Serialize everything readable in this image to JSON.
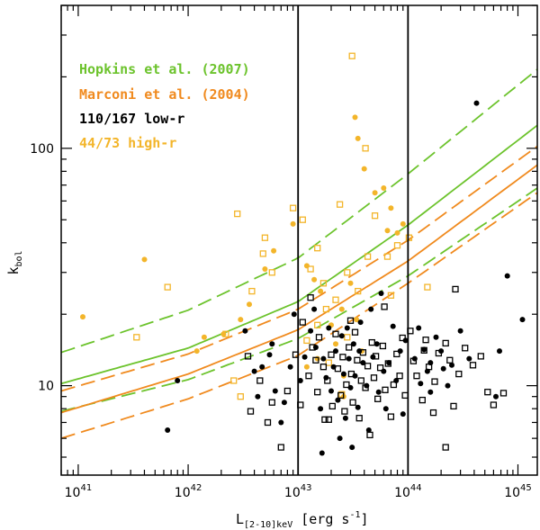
{
  "chart_data": {
    "type": "scatter",
    "title": "",
    "xlabel": "L[2-10]keV [erg s⁻¹]",
    "xlabel_main": "L",
    "xlabel_sub": "[2-10]keV",
    "xlabel_unit": " [erg s",
    "xlabel_sup": "-1",
    "xlabel_close": "]",
    "ylabel": "kbol",
    "ylabel_main": "k",
    "ylabel_sub": "bol",
    "xscale": "log",
    "yscale": "log",
    "xlim": [
      7e+40,
      1.5e+45
    ],
    "ylim": [
      4.2,
      400
    ],
    "x_ticks": [
      {
        "base": "10",
        "exp": "41",
        "value": 1e+41
      },
      {
        "base": "10",
        "exp": "42",
        "value": 1e+42
      },
      {
        "base": "10",
        "exp": "43",
        "value": 1e+43
      },
      {
        "base": "10",
        "exp": "44",
        "value": 1e+44
      },
      {
        "base": "10",
        "exp": "45",
        "value": 1e+45
      }
    ],
    "y_ticks": [
      {
        "label": "10",
        "value": 10
      },
      {
        "label": "100",
        "value": 100
      }
    ],
    "vertical_lines": [
      1e+43,
      1e+44
    ],
    "legend": [
      {
        "text": "Hopkins et al. (2007)",
        "color": "#6cc32c"
      },
      {
        "text": "Marconi et al. (2004)",
        "color": "#f08a1e"
      },
      {
        "text": "110/167 low-r",
        "color": "#000000"
      },
      {
        "text": "44/73 high-r",
        "color": "#f3b52a"
      }
    ],
    "colors": {
      "hopkins": "#6cc32c",
      "marconi": "#f08a1e",
      "low_r": "#000000",
      "high_r": "#f3b52a"
    },
    "curves": [
      {
        "name": "Hopkins et al. (2007)",
        "color": "#6cc32c",
        "style": "solid",
        "x": [
          7e+40,
          1e+42,
          1e+43,
          1e+44,
          1.5e+45
        ],
        "y": [
          10.2,
          14.4,
          22.6,
          47.5,
          125
        ]
      },
      {
        "name": "Hopkins et al. (2007) upper",
        "color": "#6cc32c",
        "style": "dashed",
        "x": [
          7e+40,
          1e+42,
          1e+43,
          1e+44,
          1.5e+45
        ],
        "y": [
          13.8,
          20.8,
          34.5,
          78,
          215
        ]
      },
      {
        "name": "Hopkins et al. (2007) lower",
        "color": "#6cc32c",
        "style": "dashed",
        "x": [
          7e+40,
          1e+42,
          1e+43,
          1e+44,
          1.5e+45
        ],
        "y": [
          7.8,
          10.6,
          15.8,
          29,
          68
        ]
      },
      {
        "name": "Marconi et al. (2004)",
        "color": "#f08a1e",
        "style": "solid",
        "x": [
          7e+40,
          1e+42,
          1e+43,
          1e+44,
          1.5e+45
        ],
        "y": [
          7.7,
          11.2,
          17.2,
          33.5,
          85
        ]
      },
      {
        "name": "Marconi et al. (2004) upper",
        "color": "#f08a1e",
        "style": "dashed",
        "x": [
          7e+40,
          1e+42,
          1e+43,
          1e+44,
          1.5e+45
        ],
        "y": [
          9.5,
          13.6,
          21,
          41,
          102
        ]
      },
      {
        "name": "Marconi et al. (2004) lower",
        "color": "#f08a1e",
        "style": "dashed",
        "x": [
          7e+40,
          1e+42,
          1e+43,
          1e+44,
          1.5e+45
        ],
        "y": [
          6.0,
          8.8,
          13.4,
          27,
          65
        ]
      }
    ],
    "points": {
      "high_r_filled": [
        [
          1.1e+41,
          19.5
        ],
        [
          4e+41,
          34
        ],
        [
          1.2e+42,
          14
        ],
        [
          1.4e+42,
          16
        ],
        [
          2.1e+42,
          16.5
        ],
        [
          3e+42,
          19
        ],
        [
          3.6e+42,
          22
        ],
        [
          5e+42,
          31
        ],
        [
          6e+42,
          37
        ],
        [
          9e+42,
          48
        ],
        [
          1.2e+43,
          32
        ],
        [
          1.4e+43,
          28
        ],
        [
          1.6e+43,
          25
        ],
        [
          2e+43,
          18
        ],
        [
          2.5e+43,
          21
        ],
        [
          3e+43,
          27
        ],
        [
          3.3e+43,
          135
        ],
        [
          3.5e+43,
          110
        ],
        [
          4e+43,
          82
        ],
        [
          5e+43,
          65
        ],
        [
          6e+43,
          68
        ],
        [
          6.5e+43,
          45
        ],
        [
          7e+43,
          56
        ],
        [
          8e+43,
          44
        ],
        [
          9e+43,
          48
        ],
        [
          1.2e+43,
          12
        ],
        [
          1.5e+43,
          13
        ],
        [
          2.2e+43,
          15
        ],
        [
          2.6e+43,
          11
        ],
        [
          3.4e+43,
          19
        ],
        [
          3.8e+43,
          14
        ],
        [
          2.6e+43,
          9
        ]
      ],
      "high_r_open": [
        [
          3.4e+41,
          16
        ],
        [
          6.5e+41,
          26
        ],
        [
          2.2e+42,
          16.5
        ],
        [
          2.6e+42,
          10.5
        ],
        [
          2.8e+42,
          53
        ],
        [
          3e+42,
          9
        ],
        [
          3.8e+42,
          25
        ],
        [
          4.8e+42,
          36
        ],
        [
          5e+42,
          42
        ],
        [
          5.8e+42,
          30
        ],
        [
          9e+42,
          56
        ],
        [
          1.1e+43,
          50
        ],
        [
          1.3e+43,
          31
        ],
        [
          1.5e+43,
          38
        ],
        [
          1.7e+43,
          27
        ],
        [
          2.4e+43,
          58
        ],
        [
          2.8e+43,
          30
        ],
        [
          3.1e+43,
          245
        ],
        [
          4.1e+43,
          100
        ],
        [
          4.3e+43,
          35
        ],
        [
          5e+43,
          52
        ],
        [
          6.5e+43,
          35
        ],
        [
          7e+43,
          24
        ],
        [
          8e+43,
          39
        ],
        [
          1.02e+44,
          42
        ],
        [
          1.5e+44,
          26
        ],
        [
          1.5e+43,
          18
        ],
        [
          1.8e+43,
          21
        ],
        [
          2.2e+43,
          23
        ],
        [
          2.5e+43,
          9.2
        ],
        [
          3.5e+43,
          25
        ],
        [
          1.2e+43,
          15.5
        ],
        [
          1.9e+43,
          12.5
        ],
        [
          2.8e+43,
          16
        ]
      ],
      "low_r_filled": [
        [
          6.5e+41,
          6.5
        ],
        [
          8e+41,
          10.5
        ],
        [
          3.3e+42,
          17
        ],
        [
          4e+42,
          11.5
        ],
        [
          4.3e+42,
          9
        ],
        [
          4.7e+42,
          12
        ],
        [
          5.5e+42,
          13.5
        ],
        [
          5.8e+42,
          15
        ],
        [
          6.2e+42,
          9.5
        ],
        [
          7e+42,
          7
        ],
        [
          7.5e+42,
          8.5
        ],
        [
          8.5e+42,
          12
        ],
        [
          9.2e+42,
          20
        ],
        [
          1.05e+43,
          10.5
        ],
        [
          1.15e+43,
          13.2
        ],
        [
          1.3e+43,
          17
        ],
        [
          1.4e+43,
          21
        ],
        [
          1.45e+43,
          14.5
        ],
        [
          1.6e+43,
          8
        ],
        [
          1.65e+43,
          5.2
        ],
        [
          1.7e+43,
          13
        ],
        [
          1.8e+43,
          10.8
        ],
        [
          1.9e+43,
          17.5
        ],
        [
          2e+43,
          9.5
        ],
        [
          2.1e+43,
          12
        ],
        [
          2.2e+43,
          14
        ],
        [
          2.3e+43,
          8.7
        ],
        [
          2.4e+43,
          6
        ],
        [
          2.5e+43,
          16.2
        ],
        [
          2.6e+43,
          11.2
        ],
        [
          2.7e+43,
          7.3
        ],
        [
          2.8e+43,
          17.5
        ],
        [
          2.9e+43,
          13
        ],
        [
          3e+43,
          9.8
        ],
        [
          3.1e+43,
          5.5
        ],
        [
          3.2e+43,
          15
        ],
        [
          3.3e+43,
          11
        ],
        [
          3.5e+43,
          8.1
        ],
        [
          3.6e+43,
          14
        ],
        [
          3.7e+43,
          18.5
        ],
        [
          3.9e+43,
          12.5
        ],
        [
          4.2e+43,
          10
        ],
        [
          4.4e+43,
          6.5
        ],
        [
          4.6e+43,
          21
        ],
        [
          4.8e+43,
          13.2
        ],
        [
          5.2e+43,
          15
        ],
        [
          5.4e+43,
          9.4
        ],
        [
          5.7e+43,
          24.5
        ],
        [
          6e+43,
          11.5
        ],
        [
          6.3e+43,
          8
        ],
        [
          6.7e+43,
          12.5
        ],
        [
          7.3e+43,
          17.8
        ],
        [
          7.8e+43,
          10.5
        ],
        [
          8.5e+43,
          14
        ],
        [
          9e+43,
          7.6
        ],
        [
          9.5e+43,
          15.5
        ],
        [
          1.15e+44,
          13
        ],
        [
          1.25e+44,
          17.5
        ],
        [
          1.4e+44,
          14.2
        ],
        [
          1.5e+44,
          11.5
        ],
        [
          1.6e+44,
          12.5
        ],
        [
          1.8e+44,
          16
        ],
        [
          2e+44,
          14
        ],
        [
          2.3e+44,
          10
        ],
        [
          2.5e+44,
          12.2
        ],
        [
          3e+44,
          17
        ],
        [
          3.6e+44,
          13
        ],
        [
          4.2e+44,
          155
        ],
        [
          6.3e+44,
          9
        ],
        [
          6.8e+44,
          14
        ],
        [
          8e+44,
          29
        ],
        [
          1.1e+45,
          19
        ],
        [
          1.6e+44,
          9.4
        ],
        [
          2.1e+44,
          11.8
        ],
        [
          1.3e+44,
          10.2
        ]
      ],
      "low_r_open": [
        [
          3.7e+42,
          7.8
        ],
        [
          4.5e+42,
          10.5
        ],
        [
          5.3e+42,
          7
        ],
        [
          5.8e+42,
          8.5
        ],
        [
          7e+42,
          5.5
        ],
        [
          8e+42,
          9.5
        ],
        [
          9.5e+42,
          13.5
        ],
        [
          1.05e+43,
          8.3
        ],
        [
          1.1e+43,
          18.5
        ],
        [
          1.25e+43,
          11
        ],
        [
          1.35e+43,
          14.5
        ],
        [
          1.5e+43,
          9.4
        ],
        [
          1.55e+43,
          16
        ],
        [
          1.7e+43,
          12
        ],
        [
          1.75e+43,
          7.2
        ],
        [
          1.85e+43,
          10.5
        ],
        [
          2e+43,
          13.5
        ],
        [
          2.05e+43,
          8.2
        ],
        [
          2.2e+43,
          16.5
        ],
        [
          2.3e+43,
          11.8
        ],
        [
          2.45e+43,
          9.1
        ],
        [
          2.55e+43,
          13.2
        ],
        [
          2.65e+43,
          7.8
        ],
        [
          2.75e+43,
          10.1
        ],
        [
          2.9e+43,
          14.5
        ],
        [
          3.05e+43,
          11.2
        ],
        [
          3.15e+43,
          8.5
        ],
        [
          3.3e+43,
          16.8
        ],
        [
          3.45e+43,
          12.8
        ],
        [
          3.6e+43,
          7.3
        ],
        [
          3.75e+43,
          10.5
        ],
        [
          3.9e+43,
          13.8
        ],
        [
          4.1e+43,
          9.8
        ],
        [
          4.3e+43,
          12.1
        ],
        [
          4.5e+43,
          6.2
        ],
        [
          4.7e+43,
          15.2
        ],
        [
          4.9e+43,
          10.8
        ],
        [
          5.1e+43,
          13.3
        ],
        [
          5.3e+43,
          8.8
        ],
        [
          5.6e+43,
          11.9
        ],
        [
          5.9e+43,
          14.7
        ],
        [
          6.2e+43,
          9.6
        ],
        [
          6.6e+43,
          12.4
        ],
        [
          7e+43,
          7.4
        ],
        [
          7.4e+43,
          10.1
        ],
        [
          7.9e+43,
          13.6
        ],
        [
          8.4e+43,
          11
        ],
        [
          8.9e+43,
          15.9
        ],
        [
          9.4e+43,
          9.1
        ],
        [
          1.05e+44,
          17
        ],
        [
          1.12e+44,
          12.7
        ],
        [
          1.2e+44,
          11
        ],
        [
          1.35e+44,
          8.7
        ],
        [
          1.45e+44,
          15.6
        ],
        [
          1.55e+44,
          12
        ],
        [
          1.7e+44,
          7.7
        ],
        [
          1.9e+44,
          13.7
        ],
        [
          2.2e+44,
          15.1
        ],
        [
          2.6e+44,
          8.2
        ],
        [
          2.9e+44,
          11.2
        ],
        [
          3.3e+44,
          14.4
        ],
        [
          3.9e+44,
          12.2
        ],
        [
          4.6e+44,
          13.3
        ],
        [
          5.3e+44,
          9.4
        ],
        [
          6e+44,
          8.3
        ],
        [
          7.4e+44,
          9.3
        ],
        [
          1.4e+44,
          14.1
        ],
        [
          1.75e+44,
          10.4
        ],
        [
          2.4e+44,
          12.8
        ],
        [
          2.7e+44,
          25.5
        ],
        [
          2.2e+44,
          5.5
        ],
        [
          1.3e+43,
          23.5
        ],
        [
          6.1e+43,
          21.5
        ],
        [
          3e+43,
          18.8
        ],
        [
          1.45e+43,
          12.8
        ],
        [
          1.9e+43,
          7.2
        ],
        [
          3.5e+42,
          13.3
        ]
      ]
    }
  }
}
